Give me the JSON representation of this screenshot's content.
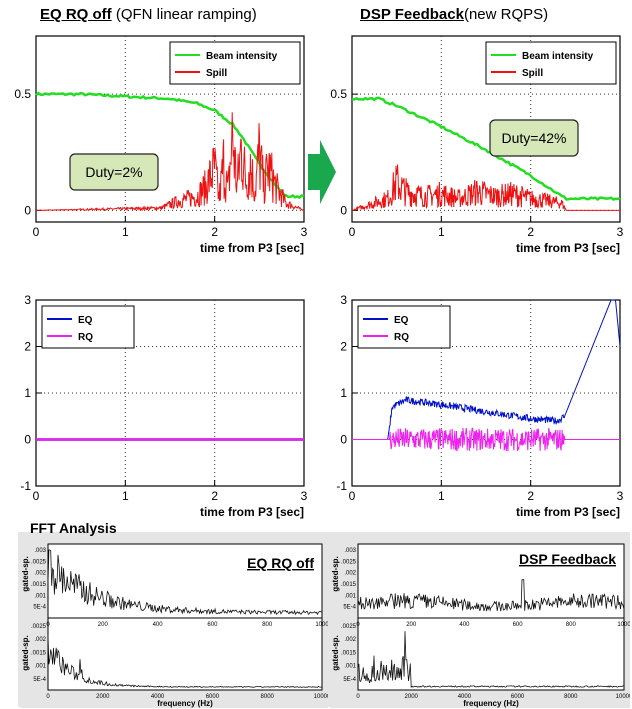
{
  "titles": {
    "left_bold": "EQ RQ off",
    "left_rest": " (QFN linear ramping)",
    "right_bold": "DSP Feedback",
    "right_rest": "(new RQPS)"
  },
  "fft_title": "FFT Analysis",
  "arrow_color": "#1aa84e",
  "chart_data": [
    {
      "id": "beam_off",
      "type": "line",
      "xlabel": "time from P3 [sec]",
      "xlim": [
        0,
        3
      ],
      "ylim": [
        -0.05,
        0.75
      ],
      "xticks": [
        "0",
        "1",
        "2",
        "3"
      ],
      "yticks": [
        "0",
        "0.5"
      ],
      "legend": "top-right",
      "annotation": "Duty=2%",
      "series": [
        {
          "name": "Beam intensity",
          "color": "#22dd22",
          "x": [
            0,
            0.5,
            1.0,
            1.5,
            1.8,
            2.0,
            2.2,
            2.3,
            2.4,
            2.5,
            2.6,
            2.7,
            2.8,
            3.0
          ],
          "y": [
            0.5,
            0.5,
            0.49,
            0.48,
            0.46,
            0.43,
            0.37,
            0.32,
            0.26,
            0.2,
            0.15,
            0.1,
            0.06,
            0.06
          ]
        },
        {
          "name": "Spill",
          "color": "#ee1111",
          "x": [
            0,
            1.4,
            1.6,
            1.8,
            1.9,
            2.0,
            2.05,
            2.1,
            2.15,
            2.2,
            2.25,
            2.3,
            2.35,
            2.4,
            2.45,
            2.5,
            2.55,
            2.6,
            2.7,
            2.8,
            3.0
          ],
          "y": [
            0,
            0.01,
            0.04,
            0.06,
            0.1,
            0.18,
            0.05,
            0.2,
            0.08,
            0.32,
            0.1,
            0.28,
            0.12,
            0.2,
            0.08,
            0.25,
            0.1,
            0.18,
            0.09,
            0.03,
            0
          ]
        }
      ]
    },
    {
      "id": "beam_dsp",
      "type": "line",
      "xlabel": "time from P3 [sec]",
      "xlim": [
        0,
        3
      ],
      "ylim": [
        -0.05,
        0.75
      ],
      "xticks": [
        "0",
        "1",
        "2",
        "3"
      ],
      "yticks": [
        "0",
        "0.5"
      ],
      "legend": "top-right",
      "annotation": "Duty=42%",
      "series": [
        {
          "name": "Beam intensity",
          "color": "#22dd22",
          "x": [
            0,
            0.3,
            0.5,
            1.0,
            1.5,
            2.0,
            2.35,
            2.4,
            3.0
          ],
          "y": [
            0.48,
            0.48,
            0.45,
            0.36,
            0.26,
            0.15,
            0.06,
            0.05,
            0.05
          ]
        },
        {
          "name": "Spill",
          "color": "#ee1111",
          "x": [
            0,
            0.4,
            0.5,
            0.6,
            0.8,
            1.0,
            1.2,
            1.4,
            1.6,
            1.8,
            2.0,
            2.2,
            2.35,
            2.4,
            3.0
          ],
          "y": [
            0,
            0.05,
            0.12,
            0.08,
            0.06,
            0.07,
            0.05,
            0.08,
            0.06,
            0.07,
            0.05,
            0.04,
            0.03,
            0,
            0
          ]
        }
      ]
    },
    {
      "id": "eqrq_off",
      "type": "line",
      "xlabel": "time from P3 [sec]",
      "xlim": [
        0,
        3
      ],
      "ylim": [
        -1,
        3
      ],
      "xticks": [
        "0",
        "1",
        "2",
        "3"
      ],
      "yticks": [
        "-1",
        "0",
        "1",
        "2",
        "3"
      ],
      "legend": "top-left",
      "series": [
        {
          "name": "EQ",
          "color": "#0011cc",
          "x": [
            0,
            3
          ],
          "y": [
            0,
            0
          ]
        },
        {
          "name": "RQ",
          "color": "#ee22ee",
          "x": [
            0,
            3
          ],
          "y": [
            0,
            0
          ]
        }
      ]
    },
    {
      "id": "eqrq_dsp",
      "type": "line",
      "xlabel": "time from P3 [sec]",
      "xlim": [
        0,
        3
      ],
      "ylim": [
        -1,
        3
      ],
      "xticks": [
        "0",
        "1",
        "2",
        "3"
      ],
      "yticks": [
        "-1",
        "0",
        "1",
        "2",
        "3"
      ],
      "legend": "top-left",
      "series": [
        {
          "name": "EQ",
          "color": "#0011cc",
          "x": [
            0,
            0.4,
            0.45,
            0.6,
            1.0,
            1.5,
            2.0,
            2.3,
            2.38,
            2.9,
            2.95,
            3.0
          ],
          "y": [
            0,
            0,
            0.7,
            0.85,
            0.75,
            0.6,
            0.45,
            0.4,
            0.5,
            3.0,
            3.0,
            2.0
          ]
        },
        {
          "name": "RQ",
          "color": "#ee22ee",
          "x": [
            0,
            0.4,
            0.42,
            2.38,
            2.4,
            3.0
          ],
          "y": [
            0,
            0,
            0,
            0,
            0,
            0
          ]
        }
      ]
    },
    {
      "id": "fft_off",
      "type": "line",
      "label": "EQ RQ off",
      "xlabel": "frequency (Hz)",
      "xticks": [
        "0",
        "2000",
        "4000",
        "6000",
        "8000",
        "10000"
      ],
      "top_xticks": [
        "0",
        "200",
        "400",
        "600",
        "800",
        "1000"
      ],
      "yticks_top": [
        ".003",
        ".0025",
        ".002",
        ".0015",
        ".001",
        "5E-4"
      ],
      "yticks_bottom": [
        ".0025",
        ".002",
        ".0015",
        ".001",
        "5E-4"
      ],
      "ylabel_top": "gated-sp.",
      "ylabel_bottom": "gated-sp."
    },
    {
      "id": "fft_dsp",
      "type": "line",
      "label": "DSP Feedback",
      "xlabel": "frequency (Hz)",
      "xticks": [
        "0",
        "2000",
        "4000",
        "6000",
        "8000",
        "10000"
      ],
      "top_xticks": [
        "0",
        "200",
        "400",
        "600",
        "800",
        "1000"
      ],
      "yticks_top": [
        ".003",
        ".0025",
        ".002",
        ".0015",
        ".001",
        "5E-4"
      ],
      "yticks_bottom": [
        ".0025",
        ".002",
        ".0015",
        ".001",
        "5E-4"
      ],
      "ylabel_top": "gated-sp.",
      "ylabel_bottom": "gated-sp."
    }
  ]
}
